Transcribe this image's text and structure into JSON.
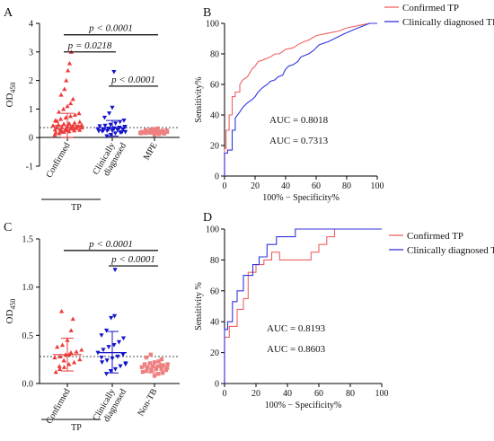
{
  "colors": {
    "red": "#ee3b3b",
    "blue": "#1414c8",
    "salmon": "#ee8080",
    "dashed": "#333333",
    "axis": "#000000",
    "roc_red": "#f06262",
    "roc_blue": "#3333dd"
  },
  "chart_data": [
    {
      "panel": "A",
      "type": "scatter",
      "ylabel_main": "OD",
      "ylabel_sub": "450",
      "ylim": [
        -1,
        4
      ],
      "yticks": [
        "-1",
        "0",
        "1",
        "2",
        "3",
        "4"
      ],
      "cutoff": 0.35,
      "categories": [
        "Confirmed",
        "Clinically diagnosed",
        "MPE"
      ],
      "group_label": "TP",
      "series": [
        {
          "category": "Confirmed",
          "marker": "triangle",
          "mean": 0.42,
          "sd_low": 0.0,
          "sd_high": 0.85,
          "values": [
            0.1,
            0.15,
            0.2,
            0.22,
            0.25,
            0.27,
            0.28,
            0.3,
            0.3,
            0.32,
            0.33,
            0.35,
            0.35,
            0.36,
            0.38,
            0.4,
            0.4,
            0.42,
            0.45,
            0.48,
            0.5,
            0.52,
            0.55,
            0.6,
            0.65,
            0.7,
            0.75,
            0.8,
            0.85,
            0.9,
            1.0,
            1.1,
            1.2,
            1.35,
            1.5,
            1.7,
            2.0,
            2.35,
            2.6,
            3.0,
            0.18,
            0.24,
            0.29,
            0.34,
            0.37,
            0.44,
            0.58,
            0.2,
            0.26,
            0.31
          ]
        },
        {
          "category": "Clinically diagnosed",
          "marker": "triangle-down",
          "mean": 0.35,
          "sd_low": 0.05,
          "sd_high": 0.6,
          "values": [
            0.05,
            0.1,
            0.15,
            0.18,
            0.2,
            0.22,
            0.24,
            0.25,
            0.27,
            0.28,
            0.3,
            0.3,
            0.32,
            0.33,
            0.35,
            0.37,
            0.4,
            0.42,
            0.45,
            0.5,
            0.55,
            0.6,
            0.7,
            0.85,
            1.05,
            2.3,
            0.19,
            0.23,
            0.26,
            0.29,
            0.31,
            0.34,
            0.38
          ]
        },
        {
          "category": "MPE",
          "marker": "square",
          "mean": 0.19,
          "sd_low": 0.12,
          "sd_high": 0.26,
          "values": [
            0.1,
            0.12,
            0.14,
            0.15,
            0.16,
            0.17,
            0.18,
            0.19,
            0.2,
            0.2,
            0.21,
            0.22,
            0.23,
            0.24,
            0.25,
            0.26,
            0.28,
            0.3,
            0.32,
            0.15,
            0.17,
            0.19,
            0.21,
            0.23,
            0.18,
            0.2
          ]
        }
      ],
      "comparisons": [
        {
          "from": 0,
          "to": 2,
          "y": 3.6,
          "text": "p < 0.0001"
        },
        {
          "from": 0,
          "to": 1,
          "y": 3.0,
          "text": "p = 0.0218"
        },
        {
          "from": 1,
          "to": 2,
          "y": 1.8,
          "text": "p < 0.0001"
        }
      ]
    },
    {
      "panel": "B",
      "type": "line",
      "xlabel": "100% − Specificity%",
      "ylabel": "Sensitivity%",
      "xlim": [
        0,
        100
      ],
      "ylim": [
        0,
        100
      ],
      "xticks": [
        "0",
        "20",
        "40",
        "60",
        "80",
        "100"
      ],
      "yticks": [
        "0",
        "20",
        "40",
        "60",
        "80",
        "100"
      ],
      "series": [
        {
          "name": "Confirmed TP",
          "auc": "AUC = 0.8018",
          "x": [
            0,
            0,
            1,
            1,
            3,
            3,
            5,
            5,
            7,
            7,
            10,
            10,
            12,
            15,
            18,
            20,
            22,
            25,
            30,
            33,
            36,
            40,
            45,
            48,
            52,
            55,
            60,
            65,
            70,
            75,
            80,
            85,
            90,
            95,
            100
          ],
          "y": [
            0,
            18,
            18,
            30,
            30,
            40,
            40,
            52,
            52,
            55,
            55,
            60,
            63,
            65,
            70,
            72,
            75,
            76,
            78,
            80,
            80,
            83,
            84,
            86,
            88,
            89,
            92,
            93,
            94,
            95,
            97,
            98,
            99,
            100,
            100
          ]
        },
        {
          "name": "Clinically diagnosed TP",
          "auc": "AUC = 0.7313",
          "x": [
            0,
            0,
            2,
            2,
            5,
            5,
            7,
            7,
            10,
            12,
            15,
            18,
            20,
            22,
            25,
            28,
            30,
            33,
            35,
            38,
            40,
            42,
            45,
            48,
            50,
            55,
            58,
            62,
            68,
            72,
            78,
            85,
            90,
            95,
            100
          ],
          "y": [
            0,
            15,
            15,
            17,
            17,
            30,
            30,
            38,
            42,
            45,
            48,
            50,
            52,
            55,
            58,
            60,
            62,
            63,
            65,
            66,
            70,
            72,
            73,
            75,
            78,
            80,
            82,
            86,
            88,
            90,
            93,
            96,
            98,
            100,
            100
          ]
        }
      ]
    },
    {
      "panel": "C",
      "type": "scatter",
      "ylabel_main": "OD",
      "ylabel_sub": "450",
      "ylim": [
        0,
        1.5
      ],
      "yticks": [
        "0.0",
        "0.5",
        "1.0",
        "1.5"
      ],
      "cutoff": 0.28,
      "categories": [
        "Confirmed",
        "Clinically diagnosed",
        "Non-TB"
      ],
      "group_label": "TP",
      "series": [
        {
          "category": "Confirmed",
          "marker": "triangle",
          "mean": 0.3,
          "sd_low": 0.13,
          "sd_high": 0.47,
          "values": [
            0.12,
            0.15,
            0.17,
            0.2,
            0.22,
            0.25,
            0.27,
            0.28,
            0.3,
            0.32,
            0.33,
            0.35,
            0.38,
            0.4,
            0.45,
            0.55,
            0.67,
            0.75,
            0.18,
            0.24,
            0.3
          ]
        },
        {
          "category": "Clinically diagnosed",
          "marker": "triangle-down",
          "mean": 0.32,
          "sd_low": 0.11,
          "sd_high": 0.54,
          "values": [
            0.1,
            0.13,
            0.15,
            0.18,
            0.2,
            0.22,
            0.24,
            0.26,
            0.28,
            0.3,
            0.32,
            0.35,
            0.38,
            0.4,
            0.43,
            0.47,
            0.5,
            0.55,
            0.68,
            0.7,
            1.18,
            0.21,
            0.27
          ]
        },
        {
          "category": "Non-TB",
          "marker": "square",
          "mean": 0.17,
          "sd_low": 0.11,
          "sd_high": 0.22,
          "values": [
            0.08,
            0.1,
            0.11,
            0.12,
            0.13,
            0.14,
            0.15,
            0.15,
            0.16,
            0.17,
            0.17,
            0.18,
            0.18,
            0.19,
            0.2,
            0.2,
            0.21,
            0.22,
            0.23,
            0.25,
            0.27,
            0.3,
            0.13,
            0.16,
            0.19,
            0.14
          ]
        }
      ],
      "comparisons": [
        {
          "from": 0,
          "to": 2,
          "y": 1.38,
          "text": "p < 0.0001"
        },
        {
          "from": 1,
          "to": 2,
          "y": 1.22,
          "text": "p < 0.0001"
        }
      ]
    },
    {
      "panel": "D",
      "type": "line",
      "xlabel": "100% − Specificity%",
      "ylabel": "Sensitivity %",
      "xlim": [
        0,
        100
      ],
      "ylim": [
        0,
        100
      ],
      "xticks": [
        "0",
        "20",
        "40",
        "60",
        "80",
        "100"
      ],
      "yticks": [
        "0",
        "20",
        "40",
        "60",
        "80",
        "100"
      ],
      "series": [
        {
          "name": "Confirmed TP",
          "auc": "AUC = 0.8193",
          "x": [
            0,
            0,
            3,
            3,
            8,
            8,
            12,
            12,
            15,
            15,
            20,
            20,
            25,
            25,
            30,
            30,
            35,
            35,
            55,
            55,
            60,
            60,
            65,
            65,
            70,
            70,
            100
          ],
          "y": [
            0,
            30,
            30,
            37,
            37,
            48,
            48,
            55,
            55,
            72,
            72,
            77,
            77,
            80,
            80,
            85,
            85,
            80,
            80,
            85,
            85,
            90,
            90,
            95,
            95,
            100,
            100
          ],
          "mono": true
        },
        {
          "name": "Clinically diagnosed TP",
          "auc": "AUC = 0.8603",
          "x": [
            0,
            0,
            2,
            2,
            5,
            5,
            8,
            8,
            12,
            12,
            18,
            18,
            22,
            22,
            27,
            27,
            33,
            33,
            38,
            38,
            45,
            45,
            55,
            55,
            58,
            58,
            100
          ],
          "y": [
            0,
            35,
            35,
            40,
            40,
            53,
            53,
            60,
            60,
            70,
            70,
            77,
            77,
            82,
            82,
            90,
            90,
            95,
            95,
            95,
            95,
            100,
            100,
            100,
            100,
            100,
            100
          ],
          "mono": true
        }
      ]
    }
  ]
}
